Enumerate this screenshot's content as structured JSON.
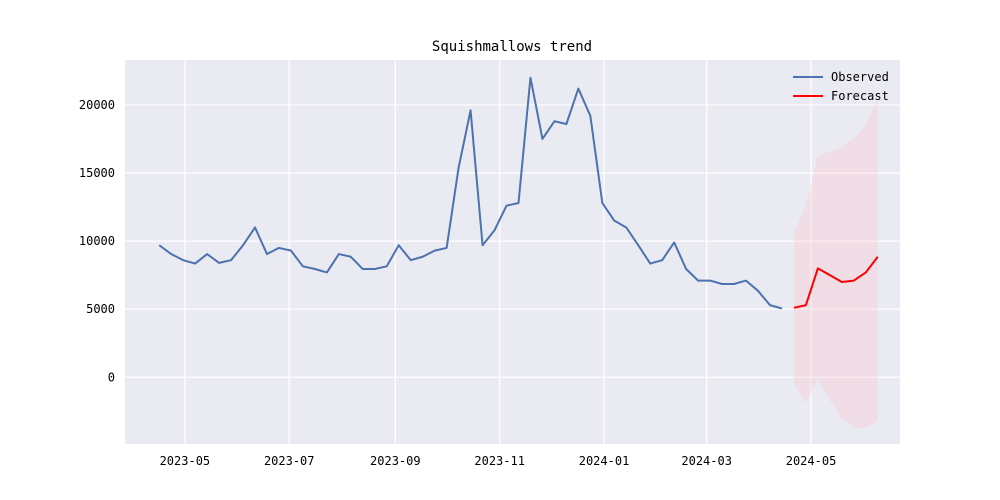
{
  "chart_data": {
    "type": "line",
    "title": "Squishmallows trend",
    "xlabel": "",
    "ylabel": "",
    "x_axis": {
      "type": "date",
      "range": [
        "2023-03-27",
        "2024-06-22"
      ],
      "ticks": [
        {
          "value": "2023-05-01",
          "label": "2023-05"
        },
        {
          "value": "2023-07-01",
          "label": "2023-07"
        },
        {
          "value": "2023-09-01",
          "label": "2023-09"
        },
        {
          "value": "2023-11-01",
          "label": "2023-11"
        },
        {
          "value": "2024-01-01",
          "label": "2024-01"
        },
        {
          "value": "2024-03-01",
          "label": "2024-03"
        },
        {
          "value": "2024-05-01",
          "label": "2024-05"
        }
      ]
    },
    "y_axis": {
      "range": [
        -4900,
        23300
      ],
      "ticks": [
        {
          "value": 0,
          "label": "0"
        },
        {
          "value": 5000,
          "label": "5000"
        },
        {
          "value": 10000,
          "label": "10000"
        },
        {
          "value": 15000,
          "label": "15000"
        },
        {
          "value": 20000,
          "label": "20000"
        }
      ]
    },
    "grid": true,
    "legend": "top-right",
    "series": [
      {
        "name": "Observed",
        "color": "#4c72b0",
        "points": [
          [
            "2023-04-16",
            9700
          ],
          [
            "2023-04-23",
            9050
          ],
          [
            "2023-04-30",
            8600
          ],
          [
            "2023-05-07",
            8350
          ],
          [
            "2023-05-14",
            9050
          ],
          [
            "2023-05-21",
            8400
          ],
          [
            "2023-05-28",
            8600
          ],
          [
            "2023-06-04",
            9700
          ],
          [
            "2023-06-11",
            11000
          ],
          [
            "2023-06-18",
            9050
          ],
          [
            "2023-06-25",
            9500
          ],
          [
            "2023-07-02",
            9300
          ],
          [
            "2023-07-09",
            8150
          ],
          [
            "2023-07-16",
            7950
          ],
          [
            "2023-07-23",
            7700
          ],
          [
            "2023-07-30",
            9050
          ],
          [
            "2023-08-06",
            8850
          ],
          [
            "2023-08-13",
            7950
          ],
          [
            "2023-08-20",
            7950
          ],
          [
            "2023-08-27",
            8150
          ],
          [
            "2023-09-03",
            9700
          ],
          [
            "2023-09-10",
            8600
          ],
          [
            "2023-09-17",
            8850
          ],
          [
            "2023-09-24",
            9300
          ],
          [
            "2023-10-01",
            9500
          ],
          [
            "2023-10-08",
            15400
          ],
          [
            "2023-10-15",
            19600
          ],
          [
            "2023-10-22",
            9700
          ],
          [
            "2023-10-29",
            10800
          ],
          [
            "2023-11-05",
            12600
          ],
          [
            "2023-11-12",
            12800
          ],
          [
            "2023-11-19",
            22000
          ],
          [
            "2023-11-26",
            17500
          ],
          [
            "2023-12-03",
            18800
          ],
          [
            "2023-12-10",
            18600
          ],
          [
            "2023-12-17",
            21200
          ],
          [
            "2023-12-24",
            19200
          ],
          [
            "2023-12-31",
            12800
          ],
          [
            "2024-01-07",
            11500
          ],
          [
            "2024-01-14",
            11000
          ],
          [
            "2024-01-21",
            9700
          ],
          [
            "2024-01-28",
            8350
          ],
          [
            "2024-02-04",
            8600
          ],
          [
            "2024-02-11",
            9900
          ],
          [
            "2024-02-18",
            7950
          ],
          [
            "2024-02-25",
            7100
          ],
          [
            "2024-03-03",
            7100
          ],
          [
            "2024-03-10",
            6850
          ],
          [
            "2024-03-17",
            6850
          ],
          [
            "2024-03-24",
            7100
          ],
          [
            "2024-03-31",
            6350
          ],
          [
            "2024-04-07",
            5300
          ],
          [
            "2024-04-14",
            5050
          ]
        ]
      },
      {
        "name": "Forecast",
        "color": "#ff0000",
        "points": [
          [
            "2024-04-21",
            5100
          ],
          [
            "2024-04-28",
            5300
          ],
          [
            "2024-05-05",
            8000
          ],
          [
            "2024-05-12",
            7500
          ],
          [
            "2024-05-19",
            7000
          ],
          [
            "2024-05-26",
            7100
          ],
          [
            "2024-06-02",
            7700
          ],
          [
            "2024-06-09",
            8850
          ]
        ],
        "interval": {
          "color": "#ffc0cb",
          "lower": [
            -450,
            -1900,
            -150,
            -1700,
            -3000,
            -3700,
            -3700,
            -3200
          ],
          "upper": [
            10600,
            12600,
            16200,
            16600,
            16900,
            17600,
            18500,
            20500
          ]
        }
      }
    ]
  }
}
